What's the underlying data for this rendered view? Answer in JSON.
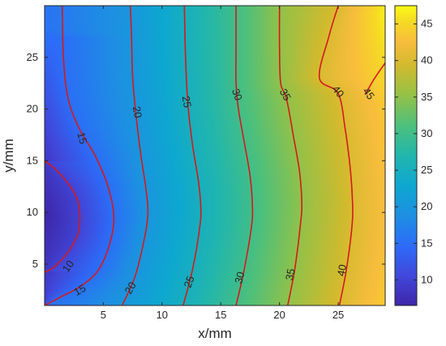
{
  "chart_data": {
    "type": "heatmap",
    "subtype": "filled-contour",
    "title": "",
    "xlabel": "x/mm",
    "ylabel": "y/mm",
    "xlim": [
      0,
      29
    ],
    "ylim": [
      1,
      30
    ],
    "x_ticks": [
      5,
      10,
      15,
      20,
      25
    ],
    "y_ticks": [
      5,
      10,
      15,
      20,
      25
    ],
    "colormap": "parula",
    "contour_line_color": "#d41a1a",
    "colorbar": {
      "clim": [
        6.5,
        47.5
      ],
      "ticks": [
        10,
        15,
        20,
        25,
        30,
        35,
        40,
        45
      ],
      "placement": "right"
    },
    "grid": false,
    "field": {
      "minimum": {
        "x": 0,
        "y": 9.5,
        "value": 6.5
      },
      "maximum": {
        "x": 29,
        "y": 27,
        "value": 47.5
      }
    },
    "contour_levels": [
      10,
      15,
      20,
      25,
      30,
      35,
      40,
      45
    ],
    "contour_labels": [
      {
        "text": "10",
        "x": 2.0,
        "y": 4.8,
        "angle": -55
      },
      {
        "text": "15",
        "x": 3.0,
        "y": 2.5,
        "angle": -30
      },
      {
        "text": "15",
        "x": 3.2,
        "y": 17.2,
        "angle": 75
      },
      {
        "text": "20",
        "x": 7.3,
        "y": 2.7,
        "angle": -60
      },
      {
        "text": "20",
        "x": 7.9,
        "y": 19.7,
        "angle": 80
      },
      {
        "text": "25",
        "x": 12.3,
        "y": 3.3,
        "angle": -70
      },
      {
        "text": "25",
        "x": 12.1,
        "y": 20.7,
        "angle": 80
      },
      {
        "text": "30",
        "x": 16.6,
        "y": 3.7,
        "angle": -75
      },
      {
        "text": "30",
        "x": 16.4,
        "y": 21.4,
        "angle": 70
      },
      {
        "text": "35",
        "x": 20.9,
        "y": 4.0,
        "angle": -78
      },
      {
        "text": "35",
        "x": 20.5,
        "y": 21.4,
        "angle": 60
      },
      {
        "text": "40",
        "x": 25.3,
        "y": 4.4,
        "angle": -80
      },
      {
        "text": "40",
        "x": 25.0,
        "y": 21.7,
        "angle": 50
      },
      {
        "text": "45",
        "x": 27.6,
        "y": 21.5,
        "angle": 55
      }
    ],
    "contour_paths": [
      [
        [
          0,
          15.0
        ],
        [
          0.9,
          14.2
        ],
        [
          2.0,
          12.8
        ],
        [
          2.8,
          11.2
        ],
        [
          3.0,
          9.5
        ],
        [
          2.8,
          7.8
        ],
        [
          2.0,
          6.2
        ],
        [
          0.9,
          4.8
        ],
        [
          0,
          4.2
        ]
      ],
      [
        [
          0,
          1.0
        ],
        [
          1.5,
          1.9
        ],
        [
          3.0,
          2.8
        ],
        [
          4.5,
          4.3
        ],
        [
          5.5,
          6.8
        ],
        [
          5.9,
          9.5
        ],
        [
          5.4,
          12.5
        ],
        [
          4.3,
          15.5
        ],
        [
          3.0,
          18.0
        ],
        [
          2.0,
          21.0
        ],
        [
          1.6,
          25.0
        ],
        [
          1.5,
          30.0
        ]
      ],
      [
        [
          6.6,
          1.0
        ],
        [
          7.7,
          3.8
        ],
        [
          8.5,
          7.5
        ],
        [
          8.8,
          10.0
        ],
        [
          8.6,
          12.5
        ],
        [
          8.2,
          15.5
        ],
        [
          7.8,
          19.2
        ],
        [
          7.5,
          23.0
        ],
        [
          7.4,
          27.0
        ],
        [
          7.3,
          30.0
        ]
      ],
      [
        [
          11.8,
          1.0
        ],
        [
          12.6,
          4.5
        ],
        [
          13.2,
          8.5
        ],
        [
          13.3,
          10.5
        ],
        [
          13.1,
          13.0
        ],
        [
          12.6,
          16.5
        ],
        [
          12.2,
          20.5
        ],
        [
          12.0,
          25.0
        ],
        [
          11.9,
          30.0
        ]
      ],
      [
        [
          16.3,
          1.0
        ],
        [
          17.0,
          4.5
        ],
        [
          17.6,
          8.5
        ],
        [
          17.7,
          10.5
        ],
        [
          17.5,
          13.5
        ],
        [
          17.0,
          16.8
        ],
        [
          16.5,
          20.0
        ],
        [
          16.3,
          22.5
        ],
        [
          16.3,
          26.0
        ],
        [
          16.3,
          30.0
        ]
      ],
      [
        [
          20.7,
          1.0
        ],
        [
          21.3,
          4.5
        ],
        [
          21.8,
          9.0
        ],
        [
          21.9,
          11.0
        ],
        [
          21.7,
          14.0
        ],
        [
          21.2,
          17.3
        ],
        [
          20.6,
          21.0
        ],
        [
          20.1,
          22.5
        ],
        [
          20.0,
          26.0
        ],
        [
          20.0,
          30.0
        ]
      ],
      [
        [
          25.1,
          1.0
        ],
        [
          25.7,
          4.5
        ],
        [
          26.2,
          9.0
        ],
        [
          26.2,
          11.5
        ],
        [
          26.0,
          14.5
        ],
        [
          25.6,
          18.0
        ],
        [
          25.0,
          21.5
        ],
        [
          23.4,
          23.0
        ],
        [
          24.2,
          27.0
        ],
        [
          25.0,
          30.0
        ]
      ],
      [
        [
          27.3,
          21.4
        ],
        [
          28.0,
          22.8
        ],
        [
          28.9,
          24.3
        ],
        [
          29.0,
          24.5
        ]
      ]
    ]
  }
}
